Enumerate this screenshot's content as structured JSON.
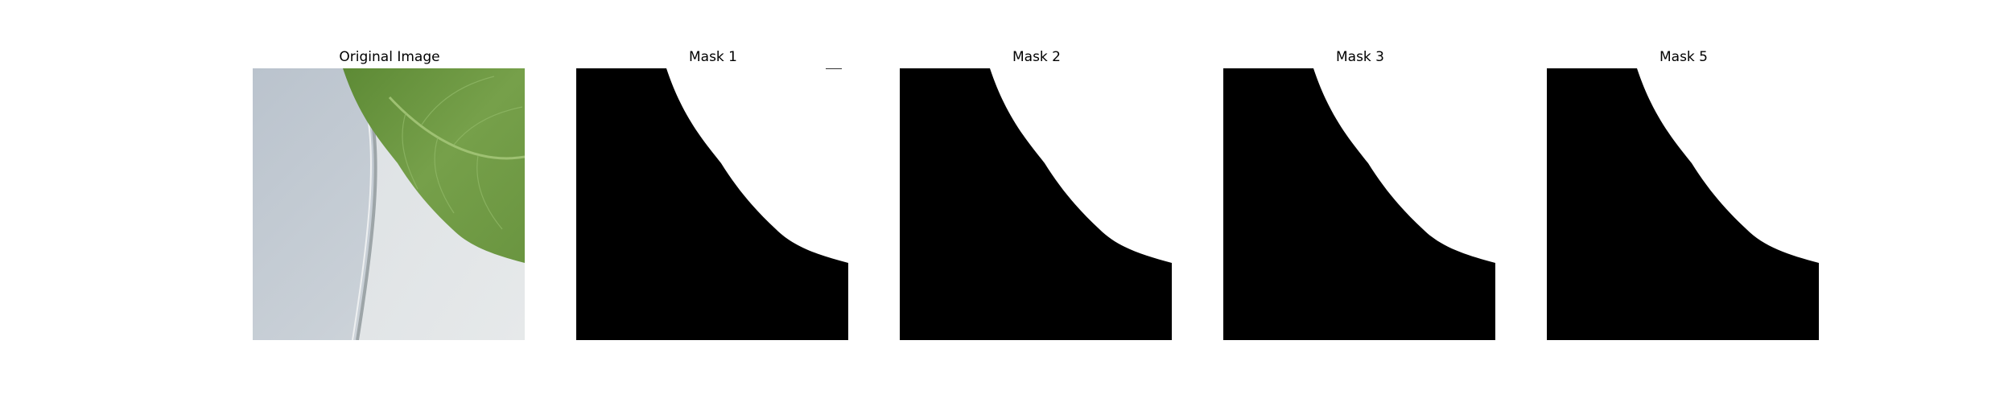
{
  "panels": [
    {
      "title": "Original Image",
      "kind": "photo"
    },
    {
      "title": "Mask 1",
      "kind": "mask"
    },
    {
      "title": "Mask 2",
      "kind": "mask"
    },
    {
      "title": "Mask 3",
      "kind": "mask"
    },
    {
      "title": "Mask 5",
      "kind": "mask"
    }
  ],
  "colors": {
    "background_surface": "#c3cad2",
    "leaf_green": "#6f9a45",
    "mask_foreground": "#000000",
    "mask_background": "#ffffff"
  }
}
